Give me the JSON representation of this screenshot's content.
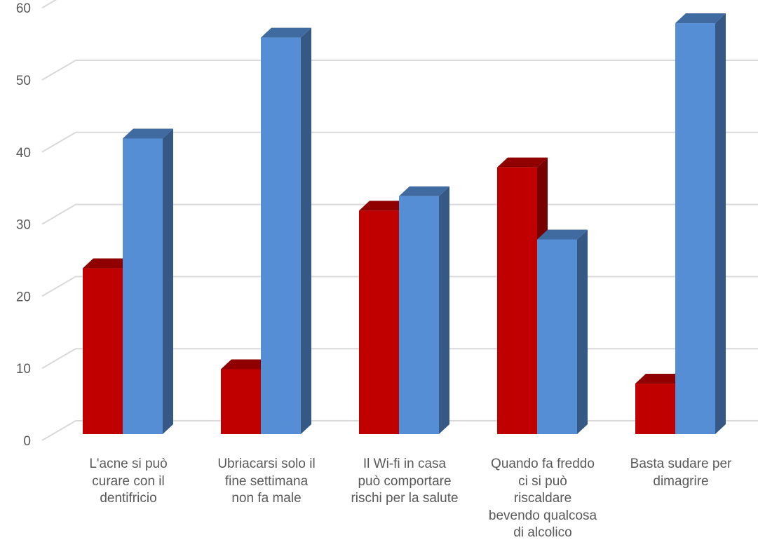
{
  "chart_data": {
    "type": "bar",
    "categories": [
      "L'acne si può curare con il dentifricio",
      "Ubriacarsi solo il fine settimana non fa male",
      "Il Wi-fi in casa può comportare rischi per la salute",
      "Quando fa freddo ci si può riscaldare bevendo qualcosa di alcolico",
      "Basta sudare per dimagrire"
    ],
    "category_lines": [
      [
        "L'acne si può",
        "curare con il",
        "dentifricio"
      ],
      [
        "Ubriacarsi solo il",
        "fine settimana",
        "non fa male"
      ],
      [
        "Il Wi-fi in casa",
        "può comportare",
        "rischi per la salute"
      ],
      [
        "Quando fa freddo",
        "ci si può",
        "riscaldare",
        "bevendo qualcosa",
        "di alcolico"
      ],
      [
        "Basta sudare per",
        "dimagrire"
      ]
    ],
    "series": [
      {
        "values": [
          23,
          9,
          31,
          37,
          7
        ],
        "color": "#C00000"
      },
      {
        "values": [
          41,
          55,
          33,
          27,
          57
        ],
        "color": "#558ED5"
      }
    ],
    "ylim": [
      0,
      60
    ],
    "yticks": [
      "0",
      "10",
      "20",
      "30",
      "40",
      "50",
      "60"
    ],
    "grid": true,
    "legend": "none",
    "style": "3d-clustered-column"
  }
}
